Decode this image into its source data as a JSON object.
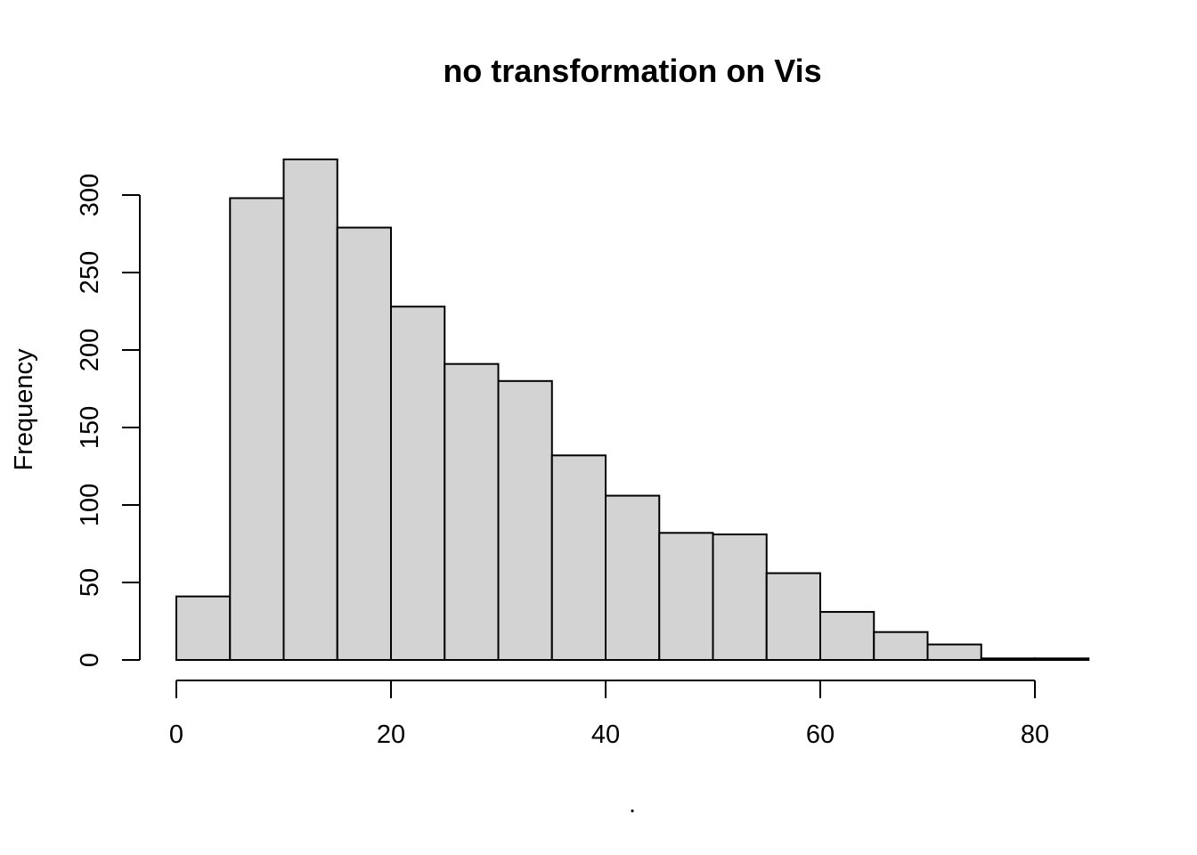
{
  "chart_data": {
    "type": "bar",
    "title": "no transformation on Vis",
    "xlabel": ".",
    "ylabel": "Frequency",
    "bin_width": 5,
    "bins": [
      {
        "start": 0,
        "end": 5,
        "count": 41
      },
      {
        "start": 5,
        "end": 10,
        "count": 298
      },
      {
        "start": 10,
        "end": 15,
        "count": 323
      },
      {
        "start": 15,
        "end": 20,
        "count": 279
      },
      {
        "start": 20,
        "end": 25,
        "count": 228
      },
      {
        "start": 25,
        "end": 30,
        "count": 191
      },
      {
        "start": 30,
        "end": 35,
        "count": 180
      },
      {
        "start": 35,
        "end": 40,
        "count": 132
      },
      {
        "start": 40,
        "end": 45,
        "count": 106
      },
      {
        "start": 45,
        "end": 50,
        "count": 82
      },
      {
        "start": 50,
        "end": 55,
        "count": 81
      },
      {
        "start": 55,
        "end": 60,
        "count": 56
      },
      {
        "start": 60,
        "end": 65,
        "count": 31
      },
      {
        "start": 65,
        "end": 70,
        "count": 18
      },
      {
        "start": 70,
        "end": 75,
        "count": 10
      },
      {
        "start": 75,
        "end": 80,
        "count": 1
      },
      {
        "start": 80,
        "end": 85,
        "count": 1
      }
    ],
    "xlim": [
      0,
      85
    ],
    "ylim": [
      0,
      325
    ],
    "x_ticks": [
      0,
      20,
      40,
      60,
      80
    ],
    "y_ticks": [
      0,
      50,
      100,
      150,
      200,
      250,
      300
    ],
    "grid": false,
    "colors": {
      "bar_fill": "#d3d3d3",
      "bar_stroke": "#000000"
    }
  }
}
